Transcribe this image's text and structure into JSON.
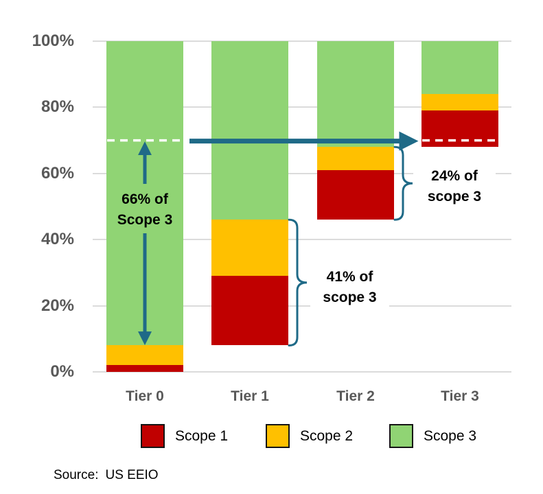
{
  "chart_data": {
    "type": "bar",
    "subtype": "stacked floating columns (scope 3 coverage waterfall)",
    "categories": [
      "Tier 0",
      "Tier 1",
      "Tier 2",
      "Tier 3"
    ],
    "series": [
      {
        "name": "Scope 1",
        "color": "#C00000",
        "segments_pct": [
          [
            0,
            2
          ],
          [
            8,
            29
          ],
          [
            46,
            61
          ],
          [
            68,
            79
          ]
        ]
      },
      {
        "name": "Scope 2",
        "color": "#FFC000",
        "segments_pct": [
          [
            2,
            8
          ],
          [
            29,
            46
          ],
          [
            61,
            68
          ],
          [
            79,
            84
          ]
        ]
      },
      {
        "name": "Scope 3",
        "color": "#90D474",
        "segments_pct": [
          [
            8,
            100
          ],
          [
            46,
            100
          ],
          [
            68,
            100
          ],
          [
            84,
            100
          ]
        ]
      }
    ],
    "y_axis": {
      "ticks": [
        "100%",
        "80%",
        "60%",
        "40%",
        "20%",
        "0%"
      ],
      "tick_values": [
        100,
        80,
        60,
        40,
        20,
        0
      ],
      "lim": [
        0,
        100
      ],
      "grid": true
    },
    "annotations": [
      {
        "id": "ann-66",
        "text_line1": "66% of",
        "text_line2": "Scope 3",
        "type": "vertical-double-arrow",
        "category": "Tier 0",
        "span_pct": [
          9,
          70
        ]
      },
      {
        "id": "ann-41",
        "text_line1": "41% of",
        "text_line2": "scope 3",
        "type": "brace",
        "category": "Tier 1",
        "span_pct": [
          8,
          46
        ]
      },
      {
        "id": "ann-24",
        "text_line1": "24% of",
        "text_line2": "scope 3",
        "type": "brace",
        "category": "Tier 2",
        "span_pct": [
          46,
          68
        ]
      }
    ],
    "flow_arrow": {
      "at_pct": 70,
      "from_category": "Tier 0",
      "to_category": "Tier 3"
    },
    "dashed_reference_lines": [
      {
        "category": "Tier 0",
        "at_pct": 70
      },
      {
        "category": "Tier 3",
        "at_pct": 70
      }
    ]
  },
  "legend": {
    "items": [
      {
        "label": "Scope 1",
        "color": "#C00000"
      },
      {
        "label": "Scope 2",
        "color": "#FFC000"
      },
      {
        "label": "Scope 3",
        "color": "#90D474"
      }
    ]
  },
  "source": {
    "label": "Source:",
    "value": "US EEIO"
  },
  "colors": {
    "accent_teal": "#1F6A87",
    "grid": "#DBDBDB",
    "axis_text": "#595959",
    "annotation_text": "#000000",
    "dashed_line": "#FFFFFF",
    "legend_border": "#141414",
    "background": "#FFFFFF"
  }
}
